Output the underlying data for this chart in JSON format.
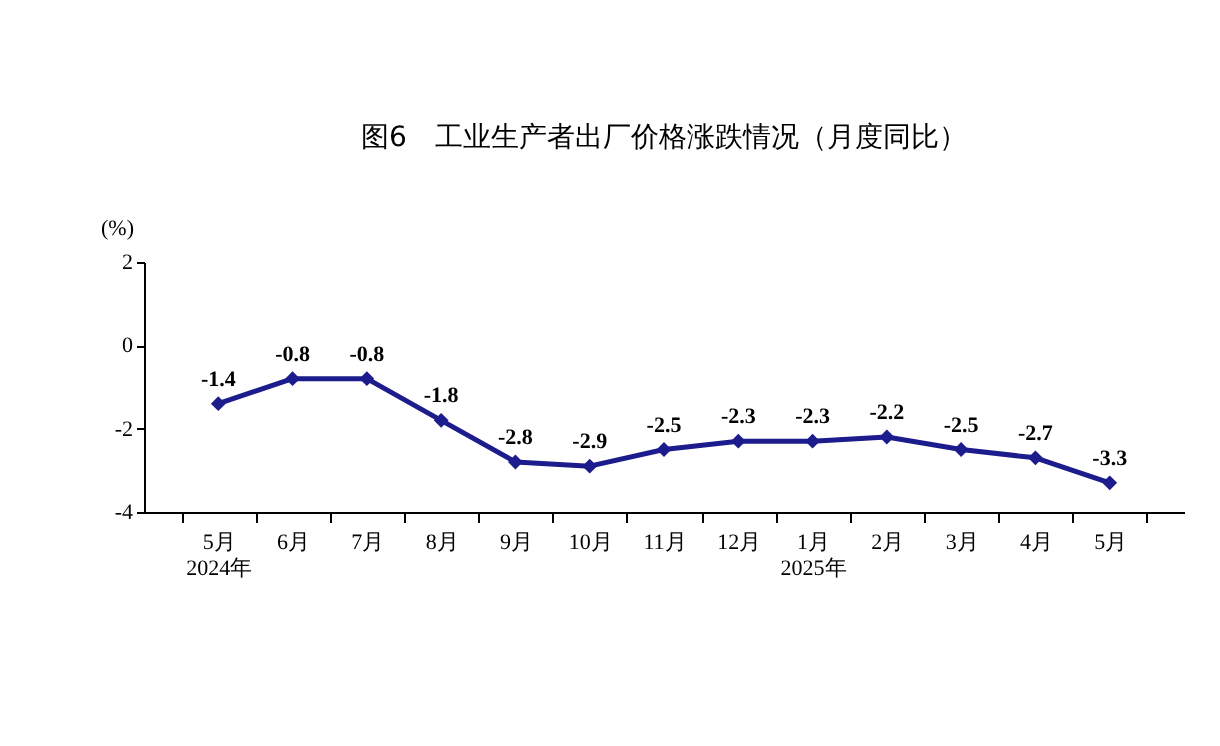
{
  "chart_data": {
    "type": "line",
    "title": "图6　工业生产者出厂价格涨跌情况（月度同比）",
    "ylabel": "(%)",
    "categories": [
      "5月\n2024年",
      "6月",
      "7月",
      "8月",
      "9月",
      "10月",
      "11月",
      "12月",
      "1月\n2025年",
      "2月",
      "3月",
      "4月",
      "5月"
    ],
    "series": [
      {
        "color": "#1c1c8c",
        "values": [
          -1.4,
          -0.8,
          -0.8,
          -1.8,
          -2.8,
          -2.9,
          -2.5,
          -2.3,
          -2.3,
          -2.2,
          -2.5,
          -2.7,
          -3.3
        ]
      }
    ],
    "ylim": [
      -4,
      2
    ],
    "yticks": [
      -4,
      -2,
      0,
      2
    ],
    "grid": false,
    "legend": false,
    "marker": "diamond",
    "line_style": "solid",
    "data_labels": true
  }
}
